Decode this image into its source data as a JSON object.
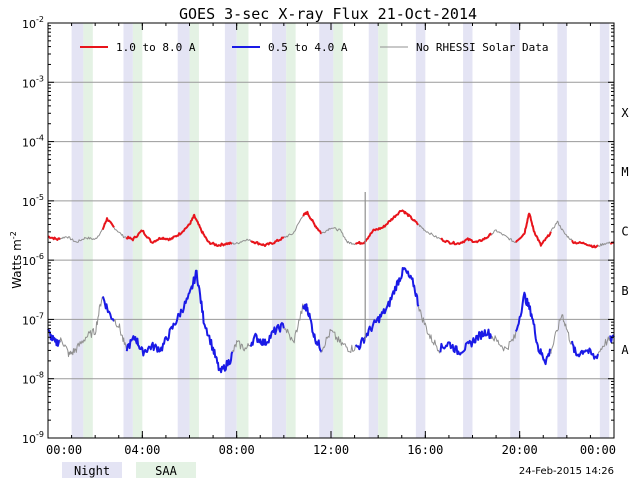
{
  "chart_data": {
    "type": "line",
    "title": "GOES 3-sec X-ray Flux   21-Oct-2014",
    "ylabel": "Watts m",
    "ylabel_sup": "-2",
    "ylim_exponent": [
      -9,
      -2
    ],
    "ylim": [
      1e-09,
      0.01
    ],
    "y_scale": "log",
    "y_tick_labels": [
      {
        "base": "10",
        "exp": "-2"
      },
      {
        "base": "10",
        "exp": "-3"
      },
      {
        "base": "10",
        "exp": "-4"
      },
      {
        "base": "10",
        "exp": "-5"
      },
      {
        "base": "10",
        "exp": "-6"
      },
      {
        "base": "10",
        "exp": "-7"
      },
      {
        "base": "10",
        "exp": "-8"
      },
      {
        "base": "10",
        "exp": "-9"
      }
    ],
    "x_range_hours": [
      0,
      24
    ],
    "x_tick_labels": [
      "00:00",
      "04:00",
      "08:00",
      "12:00",
      "16:00",
      "20:00",
      "00:00"
    ],
    "flare_classes": [
      {
        "label": "X",
        "log_flux": -4
      },
      {
        "label": "M",
        "log_flux": -5
      },
      {
        "label": "C",
        "log_flux": -6
      },
      {
        "label": "B",
        "log_flux": -7
      },
      {
        "label": "A",
        "log_flux": -8
      }
    ],
    "grid": true,
    "legend_position": "top",
    "legend": [
      {
        "label": "1.0 to 8.0 A",
        "color": "#e8141b"
      },
      {
        "label": "0.5 to 4.0 A",
        "color": "#1a1ae6"
      },
      {
        "label": "No RHESSI Solar Data",
        "color": "#909090"
      }
    ],
    "band_legend": [
      {
        "label": "Night",
        "color": "#e4e4f4"
      },
      {
        "label": "SAA",
        "color": "#e4f2e4"
      }
    ],
    "timestamp": "24-Feb-2015 14:26",
    "night_bands_hours": [
      [
        1.0,
        1.5
      ],
      [
        3.2,
        3.6
      ],
      [
        5.5,
        6.0
      ],
      [
        7.5,
        8.0
      ],
      [
        9.5,
        10.1
      ],
      [
        11.5,
        12.1
      ],
      [
        13.6,
        14.0
      ],
      [
        15.6,
        16.0
      ],
      [
        17.6,
        18.0
      ],
      [
        19.6,
        20.0
      ],
      [
        21.6,
        22.0
      ],
      [
        23.4,
        23.8
      ]
    ],
    "saa_bands_hours": [
      [
        1.5,
        1.9
      ],
      [
        3.6,
        4.0
      ],
      [
        6.0,
        6.4
      ],
      [
        8.0,
        8.5
      ],
      [
        10.1,
        10.5
      ],
      [
        12.1,
        12.5
      ],
      [
        14.0,
        14.4
      ]
    ],
    "rhessi_gaps_hours": [
      [
        0.5,
        2.3
      ],
      [
        2.8,
        3.3
      ],
      [
        7.8,
        8.6
      ],
      [
        10.0,
        10.8
      ],
      [
        11.6,
        13.0
      ],
      [
        15.7,
        16.6
      ],
      [
        18.8,
        19.8
      ],
      [
        21.3,
        22.2
      ],
      [
        23.3,
        23.8
      ]
    ],
    "series": [
      {
        "name": "1.0 to 8.0 A",
        "color": "#e8141b",
        "points_hours_logflux": [
          [
            0.0,
            -5.6
          ],
          [
            0.4,
            -5.65
          ],
          [
            0.8,
            -5.6
          ],
          [
            1.2,
            -5.7
          ],
          [
            1.6,
            -5.62
          ],
          [
            2.0,
            -5.65
          ],
          [
            2.3,
            -5.5
          ],
          [
            2.5,
            -5.3
          ],
          [
            2.8,
            -5.45
          ],
          [
            3.2,
            -5.6
          ],
          [
            3.6,
            -5.65
          ],
          [
            4.0,
            -5.5
          ],
          [
            4.4,
            -5.7
          ],
          [
            4.8,
            -5.62
          ],
          [
            5.2,
            -5.65
          ],
          [
            5.6,
            -5.55
          ],
          [
            6.0,
            -5.4
          ],
          [
            6.2,
            -5.25
          ],
          [
            6.5,
            -5.5
          ],
          [
            6.8,
            -5.7
          ],
          [
            7.2,
            -5.75
          ],
          [
            7.6,
            -5.72
          ],
          [
            8.0,
            -5.72
          ],
          [
            8.4,
            -5.65
          ],
          [
            8.8,
            -5.7
          ],
          [
            9.2,
            -5.75
          ],
          [
            9.6,
            -5.7
          ],
          [
            10.0,
            -5.62
          ],
          [
            10.4,
            -5.55
          ],
          [
            10.8,
            -5.25
          ],
          [
            11.0,
            -5.2
          ],
          [
            11.3,
            -5.4
          ],
          [
            11.6,
            -5.55
          ],
          [
            12.0,
            -5.45
          ],
          [
            12.4,
            -5.5
          ],
          [
            12.7,
            -5.7
          ],
          [
            13.0,
            -5.72
          ],
          [
            13.4,
            -5.7
          ],
          [
            13.8,
            -5.5
          ],
          [
            14.2,
            -5.45
          ],
          [
            14.6,
            -5.3
          ],
          [
            15.0,
            -5.15
          ],
          [
            15.3,
            -5.25
          ],
          [
            15.7,
            -5.4
          ],
          [
            16.0,
            -5.5
          ],
          [
            16.5,
            -5.62
          ],
          [
            17.0,
            -5.7
          ],
          [
            17.4,
            -5.72
          ],
          [
            17.8,
            -5.65
          ],
          [
            18.2,
            -5.7
          ],
          [
            18.6,
            -5.62
          ],
          [
            19.0,
            -5.5
          ],
          [
            19.4,
            -5.6
          ],
          [
            19.8,
            -5.7
          ],
          [
            20.2,
            -5.55
          ],
          [
            20.4,
            -5.2
          ],
          [
            20.6,
            -5.5
          ],
          [
            20.9,
            -5.75
          ],
          [
            21.2,
            -5.6
          ],
          [
            21.6,
            -5.35
          ],
          [
            21.9,
            -5.55
          ],
          [
            22.3,
            -5.7
          ],
          [
            22.8,
            -5.72
          ],
          [
            23.2,
            -5.78
          ],
          [
            23.6,
            -5.72
          ],
          [
            24.0,
            -5.7
          ]
        ]
      },
      {
        "name": "0.5 to 4.0 A",
        "color": "#1a1ae6",
        "points_hours_logflux": [
          [
            0.0,
            -7.2
          ],
          [
            0.3,
            -7.4
          ],
          [
            0.6,
            -7.35
          ],
          [
            0.9,
            -7.6
          ],
          [
            1.2,
            -7.5
          ],
          [
            1.6,
            -7.3
          ],
          [
            2.0,
            -7.2
          ],
          [
            2.3,
            -6.6
          ],
          [
            2.6,
            -6.9
          ],
          [
            3.0,
            -7.1
          ],
          [
            3.3,
            -7.5
          ],
          [
            3.7,
            -7.3
          ],
          [
            4.0,
            -7.55
          ],
          [
            4.4,
            -7.45
          ],
          [
            4.8,
            -7.5
          ],
          [
            5.2,
            -7.2
          ],
          [
            5.6,
            -6.9
          ],
          [
            6.0,
            -6.6
          ],
          [
            6.3,
            -6.2
          ],
          [
            6.6,
            -7.0
          ],
          [
            7.0,
            -7.5
          ],
          [
            7.3,
            -7.9
          ],
          [
            7.7,
            -7.7
          ],
          [
            8.0,
            -7.4
          ],
          [
            8.4,
            -7.5
          ],
          [
            8.8,
            -7.3
          ],
          [
            9.2,
            -7.4
          ],
          [
            9.6,
            -7.2
          ],
          [
            10.0,
            -7.1
          ],
          [
            10.4,
            -7.4
          ],
          [
            10.8,
            -6.8
          ],
          [
            11.0,
            -6.8
          ],
          [
            11.3,
            -7.3
          ],
          [
            11.6,
            -7.5
          ],
          [
            12.0,
            -7.2
          ],
          [
            12.4,
            -7.4
          ],
          [
            12.8,
            -7.5
          ],
          [
            13.2,
            -7.45
          ],
          [
            13.6,
            -7.2
          ],
          [
            14.0,
            -7.0
          ],
          [
            14.4,
            -6.8
          ],
          [
            14.8,
            -6.4
          ],
          [
            15.1,
            -6.15
          ],
          [
            15.5,
            -6.4
          ],
          [
            15.8,
            -6.9
          ],
          [
            16.2,
            -7.3
          ],
          [
            16.6,
            -7.5
          ],
          [
            17.0,
            -7.4
          ],
          [
            17.4,
            -7.55
          ],
          [
            17.8,
            -7.45
          ],
          [
            18.2,
            -7.3
          ],
          [
            18.6,
            -7.2
          ],
          [
            19.0,
            -7.35
          ],
          [
            19.4,
            -7.5
          ],
          [
            19.8,
            -7.3
          ],
          [
            20.2,
            -6.6
          ],
          [
            20.5,
            -6.9
          ],
          [
            20.8,
            -7.5
          ],
          [
            21.1,
            -7.7
          ],
          [
            21.4,
            -7.45
          ],
          [
            21.8,
            -6.9
          ],
          [
            22.1,
            -7.3
          ],
          [
            22.4,
            -7.6
          ],
          [
            22.8,
            -7.5
          ],
          [
            23.2,
            -7.65
          ],
          [
            23.6,
            -7.4
          ],
          [
            24.0,
            -7.3
          ]
        ]
      }
    ],
    "rhessi_spike": {
      "hour": 13.45,
      "log_flux_top": -4.85,
      "log_flux_bottom": -7.35
    }
  }
}
